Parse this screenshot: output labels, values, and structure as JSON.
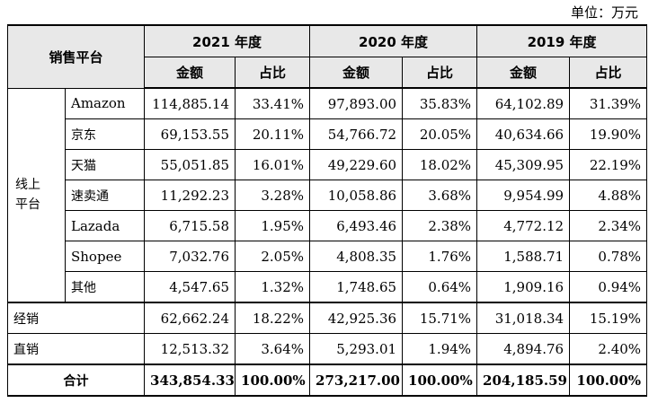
{
  "unit_label": "单位：万元",
  "header": {
    "platform": "销售平台",
    "years": [
      "2021 年度",
      "2020 年度",
      "2019 年度"
    ],
    "amount": "金额",
    "ratio": "占比"
  },
  "online_group": {
    "line1": "线上",
    "line2": "平台"
  },
  "online_rows": [
    {
      "name": "Amazon",
      "v": [
        "114,885.14",
        "33.41%",
        "97,893.00",
        "35.83%",
        "64,102.89",
        "31.39%"
      ]
    },
    {
      "name": "京东",
      "v": [
        "69,153.55",
        "20.11%",
        "54,766.72",
        "20.05%",
        "40,634.66",
        "19.90%"
      ]
    },
    {
      "name": "天猫",
      "v": [
        "55,051.85",
        "16.01%",
        "49,229.60",
        "18.02%",
        "45,309.95",
        "22.19%"
      ]
    },
    {
      "name": "速卖通",
      "v": [
        "11,292.23",
        "3.28%",
        "10,058.86",
        "3.68%",
        "9,954.99",
        "4.88%"
      ]
    },
    {
      "name": "Lazada",
      "v": [
        "6,715.58",
        "1.95%",
        "6,493.46",
        "2.38%",
        "4,772.12",
        "2.34%"
      ]
    },
    {
      "name": "Shopee",
      "v": [
        "7,032.76",
        "2.05%",
        "4,808.35",
        "1.76%",
        "1,588.71",
        "0.78%"
      ]
    },
    {
      "name": "其他",
      "v": [
        "4,547.65",
        "1.32%",
        "1,748.65",
        "0.64%",
        "1,909.16",
        "0.94%"
      ]
    }
  ],
  "other_rows": [
    {
      "name": "经销",
      "v": [
        "62,662.24",
        "18.22%",
        "42,925.36",
        "15.71%",
        "31,018.34",
        "15.19%"
      ]
    },
    {
      "name": "直销",
      "v": [
        "12,513.32",
        "3.64%",
        "5,293.01",
        "1.94%",
        "4,894.76",
        "2.40%"
      ]
    }
  ],
  "total": {
    "name": "合计",
    "v": [
      "343,854.33",
      "100.00%",
      "273,217.00",
      "100.00%",
      "204,185.59",
      "100.00%"
    ]
  }
}
